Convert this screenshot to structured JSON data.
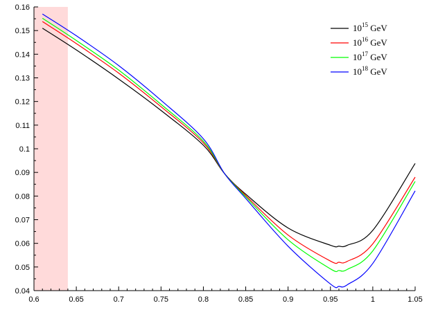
{
  "chart_data": {
    "type": "line",
    "title": "",
    "xlabel": "",
    "ylabel": "",
    "xlim": [
      0.6,
      1.05
    ],
    "ylim": [
      0.04,
      0.16
    ],
    "x_ticks": [
      "0.6",
      "0.65",
      "0.7",
      "0.75",
      "0.8",
      "0.85",
      "0.9",
      "0.95",
      "1",
      "1.05"
    ],
    "y_ticks": [
      "0.04",
      "0.05",
      "0.06",
      "0.07",
      "0.08",
      "0.09",
      "0.1",
      "0.11",
      "0.12",
      "0.13",
      "0.14",
      "0.15",
      "0.16"
    ],
    "shaded_region": {
      "x": [
        0.6,
        0.64
      ],
      "color": "#ffdada"
    },
    "legend_position": "top-right",
    "grid": false,
    "series": [
      {
        "name": "10^15 GeV",
        "name_base": "10",
        "name_exp": "15",
        "name_unit": " GeV",
        "color": "#000000",
        "x": [
          0.61,
          0.65,
          0.7,
          0.75,
          0.8,
          0.825,
          0.85,
          0.9,
          0.95,
          0.96,
          0.97,
          1.0,
          1.05
        ],
        "y": [
          0.151,
          0.1418,
          0.1295,
          0.1162,
          0.1015,
          0.0895,
          0.0808,
          0.0665,
          0.0592,
          0.0588,
          0.0592,
          0.0655,
          0.0938
        ]
      },
      {
        "name": "10^16 GeV",
        "name_base": "10",
        "name_exp": "16",
        "name_unit": " GeV",
        "color": "#ff0000",
        "x": [
          0.61,
          0.65,
          0.7,
          0.75,
          0.8,
          0.825,
          0.85,
          0.9,
          0.95,
          0.96,
          0.97,
          1.0,
          1.05
        ],
        "y": [
          0.1538,
          0.1445,
          0.132,
          0.1178,
          0.1025,
          0.0895,
          0.0802,
          0.0635,
          0.0525,
          0.052,
          0.0524,
          0.0598,
          0.088
        ]
      },
      {
        "name": "10^17 GeV",
        "name_base": "10",
        "name_exp": "17",
        "name_unit": " GeV",
        "color": "#00ff00",
        "x": [
          0.61,
          0.65,
          0.7,
          0.75,
          0.8,
          0.825,
          0.85,
          0.9,
          0.95,
          0.96,
          0.97,
          1.0,
          1.05
        ],
        "y": [
          0.1552,
          0.1458,
          0.1333,
          0.1188,
          0.1032,
          0.0895,
          0.0797,
          0.0615,
          0.0492,
          0.0485,
          0.049,
          0.0568,
          0.0862
        ]
      },
      {
        "name": "10^18 GeV",
        "name_base": "10",
        "name_exp": "18",
        "name_unit": " GeV",
        "color": "#0000ff",
        "x": [
          0.61,
          0.65,
          0.7,
          0.75,
          0.8,
          0.825,
          0.85,
          0.9,
          0.95,
          0.96,
          0.97,
          1.0,
          1.05
        ],
        "y": [
          0.157,
          0.1478,
          0.1352,
          0.1205,
          0.1042,
          0.0895,
          0.079,
          0.0588,
          0.0428,
          0.0418,
          0.0425,
          0.0515,
          0.0822
        ]
      }
    ]
  }
}
